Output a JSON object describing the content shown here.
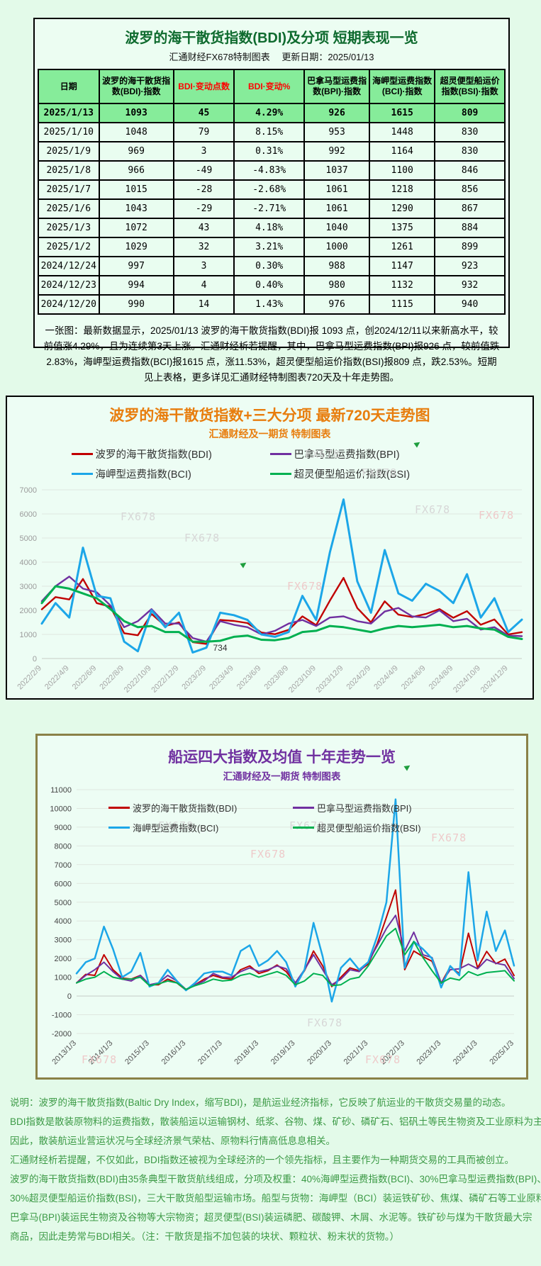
{
  "watermark": "FX678",
  "footer_lines": [
    "说明：波罗的海干散货指数(Baltic Dry Index，缩写BDI)，是航运业经济指标，它反映了航运业的干散货交易量的动态。",
    "BDI指数是散装原物料的运费指数，散装船运以运输钢材、纸浆、谷物、煤、矿砂、磷矿石、铝矾土等民生物资及工业原料为主。",
    "因此，散装航运业营运状况与全球经济景气荣枯、原物料行情高低息息相关。",
    "汇通财经析若提醒，不仅如此，BDI指数还被视为全球经济的一个领先指标，且主要作为一种期货交易的工具而被创立。",
    "波罗的海干散货指数(BDI)由35条典型干散货航线组成，分项及权重：40%海岬型运费指数(BCI)、30%巴拿马型运费指数(BPI)、",
    "30%超灵便型船运价指数(BSI)，三大干散货船型运输市场。船型与货物：海岬型（BCI）装运铁矿砂、焦煤、磷矿石等工业原料；",
    "巴拿马(BPI)装运民生物资及谷物等大宗物资；超灵便型(BSI)装运磷肥、碳酸钾、木屑、水泥等。铁矿砂与煤为干散货最大宗",
    "商品，因此走势常与BDI相关。（注：干散货是指不加包装的块状、颗粒状、粉末状的货物。）"
  ],
  "chart_data": [
    {
      "type": "table",
      "title": "波罗的海干散货指数(BDI)及分项 短期表现一览",
      "subtitle": "汇通财经FX678特制图表　 更新日期：2025/01/13",
      "columns": [
        "日期",
        "波罗的海干散货指数(BDI)·指数",
        "BDI·变动点数",
        "BDI·变动%",
        "巴拿马型运费指数(BPI)·指数",
        "海岬型运费指数(BCI)·指数",
        "超灵便型船运价指数(BSI)·指数"
      ],
      "red_columns": [
        2,
        3
      ],
      "rows": [
        [
          "2025/1/13",
          "1093",
          "45",
          "4.29%",
          "926",
          "1615",
          "809"
        ],
        [
          "2025/1/10",
          "1048",
          "79",
          "8.15%",
          "953",
          "1448",
          "830"
        ],
        [
          "2025/1/9",
          "969",
          "3",
          "0.31%",
          "992",
          "1164",
          "830"
        ],
        [
          "2025/1/8",
          "966",
          "-49",
          "-4.83%",
          "1037",
          "1100",
          "846"
        ],
        [
          "2025/1/7",
          "1015",
          "-28",
          "-2.68%",
          "1061",
          "1218",
          "856"
        ],
        [
          "2025/1/6",
          "1043",
          "-29",
          "-2.71%",
          "1061",
          "1290",
          "867"
        ],
        [
          "2025/1/3",
          "1072",
          "43",
          "4.18%",
          "1040",
          "1375",
          "884"
        ],
        [
          "2025/1/2",
          "1029",
          "32",
          "3.21%",
          "1000",
          "1261",
          "899"
        ],
        [
          "2024/12/24",
          "997",
          "3",
          "0.30%",
          "988",
          "1147",
          "923"
        ],
        [
          "2024/12/23",
          "994",
          "4",
          "0.40%",
          "980",
          "1132",
          "932"
        ],
        [
          "2024/12/20",
          "990",
          "14",
          "1.43%",
          "976",
          "1115",
          "940"
        ]
      ],
      "note": "一张图：最新数据显示，2025/01/13 波罗的海干散货指数(BDI)报 1093 点，创2024/12/11以来新高水平，较前值涨4.29%，且为连续第3天上涨。汇通财经析若提醒，其中，巴拿马型运费指数(BPI)报926 点，较前值跌2.83%，海岬型运费指数(BCI)报1615 点，涨11.53%，超灵便型船运价指数(BSI)报809 点，跌2.53%。短期见上表格，更多详见汇通财经特制图表720天及十年走势图。"
    },
    {
      "type": "line",
      "title": "波罗的海干散货指数+三大分项  最新720天走势图",
      "subtitle": "汇通财经及一期货 特制图表",
      "ylim": [
        0,
        7000
      ],
      "ytick": 1000,
      "x_tick_every": 2,
      "grid": true,
      "legend_position": "top",
      "x": [
        "2022/2/9",
        "2022/3/9",
        "2022/4/9",
        "2022/5/9",
        "2022/6/9",
        "2022/7/9",
        "2022/8/9",
        "2022/9/9",
        "2022/10/9",
        "2022/11/9",
        "2022/12/9",
        "2023/1/9",
        "2023/2/9",
        "2023/3/9",
        "2023/4/9",
        "2023/5/9",
        "2023/6/9",
        "2023/7/9",
        "2023/8/9",
        "2023/9/9",
        "2023/10/9",
        "2023/11/9",
        "2023/12/9",
        "2024/1/9",
        "2024/2/9",
        "2024/3/9",
        "2024/4/9",
        "2024/5/9",
        "2024/6/9",
        "2024/7/9",
        "2024/8/9",
        "2024/9/9",
        "2024/10/9",
        "2024/11/9",
        "2024/12/9",
        "2025/1/9"
      ],
      "series": [
        {
          "name": "波罗的海干散货指数(BDI)",
          "color": "#c00000",
          "width": 2.4,
          "values": [
            2040,
            2550,
            2450,
            3300,
            2300,
            2150,
            1050,
            965,
            1850,
            1350,
            1500,
            680,
            605,
            1600,
            1560,
            1470,
            1080,
            1010,
            1190,
            1750,
            1385,
            2400,
            3346,
            2094,
            1500,
            2375,
            1821,
            1721,
            1850,
            2050,
            1690,
            1965,
            1400,
            1620,
            1000,
            1093
          ]
        },
        {
          "name": "巴拿马型运费指数(BPI)",
          "color": "#7030a0",
          "width": 2.4,
          "values": [
            2380,
            3000,
            3400,
            2900,
            2750,
            2200,
            1300,
            1550,
            2050,
            1450,
            1450,
            850,
            700,
            1550,
            1400,
            1300,
            1000,
            1150,
            1450,
            1600,
            1350,
            1700,
            1750,
            1550,
            1450,
            1950,
            2100,
            1750,
            1700,
            2000,
            1550,
            1650,
            1200,
            1300,
            950,
            926
          ]
        },
        {
          "name": "海岬型运费指数(BCI)",
          "color": "#1ca6e8",
          "width": 3,
          "values": [
            1450,
            2300,
            1700,
            4600,
            2600,
            2500,
            700,
            300,
            2000,
            1300,
            1900,
            250,
            450,
            1900,
            1800,
            1600,
            1000,
            900,
            1100,
            2600,
            1600,
            4400,
            6600,
            3200,
            1900,
            4500,
            2700,
            2400,
            3100,
            2800,
            2300,
            3500,
            1700,
            2500,
            1100,
            1615
          ]
        },
        {
          "name": "超灵便型船运价指数(BSI)",
          "color": "#00b050",
          "width": 3,
          "values": [
            2300,
            3000,
            2900,
            2700,
            2500,
            2050,
            1550,
            1300,
            1350,
            1100,
            1100,
            700,
            700,
            734,
            900,
            950,
            780,
            760,
            850,
            1100,
            1150,
            1350,
            1300,
            1200,
            1100,
            1250,
            1350,
            1300,
            1350,
            1400,
            1300,
            1350,
            1250,
            1200,
            900,
            809
          ]
        }
      ],
      "annotation": {
        "text": "734",
        "series_index": 3,
        "point_index": 13
      }
    },
    {
      "type": "line",
      "title": "船运四大指数及均值 十年走势一览",
      "subtitle": "汇通财经及一期货 特制图表",
      "ylim": [
        -2000,
        11000
      ],
      "ytick": 1000,
      "x_tick_every": 4,
      "grid": true,
      "legend_position": "top-inside",
      "x": [
        "2013/1/3",
        "2013/4/3",
        "2013/7/3",
        "2013/10/3",
        "2014/1/3",
        "2014/4/3",
        "2014/7/3",
        "2014/10/3",
        "2015/1/3",
        "2015/4/3",
        "2015/7/3",
        "2015/10/3",
        "2016/1/3",
        "2016/4/3",
        "2016/7/3",
        "2016/10/3",
        "2017/1/3",
        "2017/4/3",
        "2017/7/3",
        "2017/10/3",
        "2018/1/3",
        "2018/4/3",
        "2018/7/3",
        "2018/10/3",
        "2019/1/3",
        "2019/4/3",
        "2019/7/3",
        "2019/10/3",
        "2020/1/3",
        "2020/4/3",
        "2020/7/3",
        "2020/10/3",
        "2021/1/3",
        "2021/4/3",
        "2021/7/3",
        "2021/10/3",
        "2022/1/3",
        "2022/4/3",
        "2022/7/3",
        "2022/10/3",
        "2023/1/3",
        "2023/4/3",
        "2023/7/3",
        "2023/10/3",
        "2024/1/3",
        "2024/4/3",
        "2024/7/3",
        "2024/10/3",
        "2025/1/3"
      ],
      "series": [
        {
          "name": "波罗的海干散货指数(BDI)",
          "color": "#c00000",
          "width": 2,
          "values": [
            700,
            1150,
            1100,
            2200,
            1400,
            950,
            900,
            1100,
            600,
            600,
            900,
            700,
            310,
            600,
            900,
            1100,
            950,
            900,
            1400,
            1600,
            1200,
            1350,
            1650,
            1300,
            650,
            1350,
            2400,
            1600,
            500,
            1000,
            1500,
            1350,
            1700,
            2800,
            4200,
            5650,
            1400,
            2400,
            2100,
            1850,
            680,
            1560,
            1190,
            3346,
            1500,
            2375,
            1721,
            1965,
            1093
          ]
        },
        {
          "name": "巴拿马型运费指数(BPI)",
          "color": "#7030a0",
          "width": 2,
          "values": [
            700,
            1100,
            1400,
            1800,
            1300,
            900,
            800,
            1100,
            600,
            700,
            1100,
            800,
            350,
            600,
            800,
            1200,
            1000,
            1000,
            1300,
            1500,
            1300,
            1400,
            1600,
            1450,
            700,
            1400,
            2200,
            1400,
            600,
            900,
            1400,
            1300,
            1800,
            2700,
            3600,
            4300,
            2400,
            3400,
            2200,
            2050,
            700,
            1400,
            1450,
            1700,
            1450,
            1950,
            1750,
            1650,
            926
          ]
        },
        {
          "name": "海岬型运费指数(BCI)",
          "color": "#1ca6e8",
          "width": 2.5,
          "values": [
            1200,
            1800,
            2000,
            3700,
            2500,
            1000,
            1300,
            2300,
            500,
            700,
            1400,
            800,
            300,
            700,
            1200,
            1300,
            1300,
            1100,
            2400,
            2700,
            1600,
            1900,
            2400,
            1800,
            500,
            1400,
            3900,
            2100,
            -300,
            1500,
            2000,
            1400,
            1800,
            3200,
            5000,
            10485,
            1500,
            2900,
            2500,
            2000,
            450,
            1600,
            1100,
            6600,
            1900,
            4500,
            2400,
            3500,
            1615
          ]
        },
        {
          "name": "超灵便型船运价指数(BSI)",
          "color": "#00b050",
          "width": 2,
          "values": [
            700,
            900,
            1000,
            1300,
            1000,
            900,
            900,
            1000,
            550,
            650,
            800,
            700,
            350,
            550,
            700,
            900,
            800,
            850,
            1100,
            1200,
            1000,
            1150,
            1300,
            1100,
            600,
            800,
            1200,
            1100,
            550,
            600,
            900,
            1000,
            1600,
            2400,
            3200,
            3600,
            2200,
            2900,
            2050,
            1350,
            700,
            950,
            850,
            1300,
            1100,
            1250,
            1300,
            1350,
            809
          ]
        }
      ]
    }
  ]
}
